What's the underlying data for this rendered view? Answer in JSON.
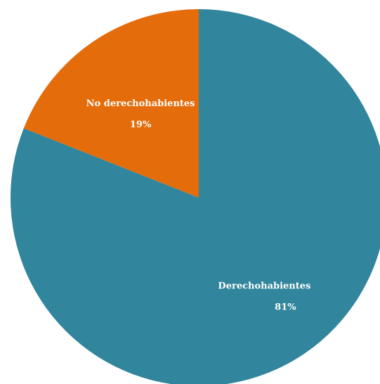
{
  "chart_data": {
    "type": "pie",
    "title": "",
    "start_angle_deg": 0,
    "direction": "clockwise",
    "slices": [
      {
        "label": "Derechohabientes",
        "value": 81,
        "value_label": "81%",
        "color": "#31859C"
      },
      {
        "label": "No derechohabientes",
        "value": 19,
        "value_label": "19%",
        "color": "#E46C0A"
      }
    ],
    "legend": "none"
  }
}
